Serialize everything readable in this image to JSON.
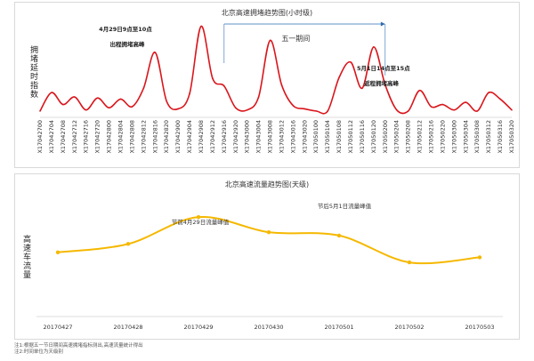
{
  "chart_data": [
    {
      "type": "line",
      "title": "北京高速拥堵趋势图(小时级)",
      "ylabel": "拥堵延时指数",
      "color": "#d9161c",
      "x": [
        "X17042700",
        "X17042704",
        "X17042708",
        "X17042712",
        "X17042716",
        "X17042720",
        "X17042800",
        "X17042804",
        "X17042808",
        "X17042812",
        "X17042816",
        "X17042820",
        "X17042900",
        "X17042904",
        "X17042908",
        "X17042912",
        "X17042916",
        "X17042920",
        "X17043000",
        "X17043004",
        "X17043008",
        "X17043012",
        "X17043016",
        "X17043020",
        "X17050100",
        "X17050104",
        "X17050108",
        "X17050112",
        "X17050116",
        "X17050120",
        "X17050200",
        "X17050204",
        "X17050208",
        "X17050212",
        "X17050216",
        "X17050220",
        "X17050300",
        "X17050304",
        "X17050308",
        "X17050312",
        "X17050316",
        "X17050320"
      ],
      "values": [
        0.5,
        2.2,
        1.1,
        1.8,
        0.6,
        1.7,
        0.8,
        1.6,
        0.9,
        2.6,
        5.9,
        1.4,
        0.7,
        2.1,
        8.3,
        3.5,
        2.8,
        0.8,
        0.6,
        1.8,
        7.0,
        2.9,
        1.0,
        0.7,
        0.5,
        0.5,
        3.6,
        5.0,
        2.6,
        6.4,
        2.9,
        0.6,
        0.5,
        2.4,
        0.9,
        1.1,
        0.6,
        1.3,
        0.5,
        2.2,
        1.6,
        0.6
      ],
      "ylim": [
        0,
        9
      ],
      "span": {
        "label": "五一期间",
        "from": "X17042916",
        "to": "X17050200"
      },
      "annotations": [
        {
          "text": "4月29日9点至10点",
          "line2": "出程拥堵高峰"
        },
        {
          "text": "5月1日14点至15点",
          "line2": "返程拥堵高峰"
        }
      ]
    },
    {
      "type": "line",
      "title": "北京高速流量趋势图(天级)",
      "ylabel": "高速车流量",
      "color": "#f5b800",
      "categories": [
        "20170427",
        "20170428",
        "20170429",
        "20170430",
        "20170501",
        "20170502",
        "20170503"
      ],
      "values": [
        63,
        68,
        84,
        75,
        73,
        57,
        60
      ],
      "ylim": [
        30,
        100
      ],
      "annotations": [
        {
          "text": "节前4月29日流量峰值"
        },
        {
          "text": "节后5月1日流量峰值"
        }
      ]
    }
  ],
  "notes": [
    "注1:根据五一节日期间高速拥堵指标测出,高速流量统计得出",
    "注2:时间单位为天级别"
  ]
}
